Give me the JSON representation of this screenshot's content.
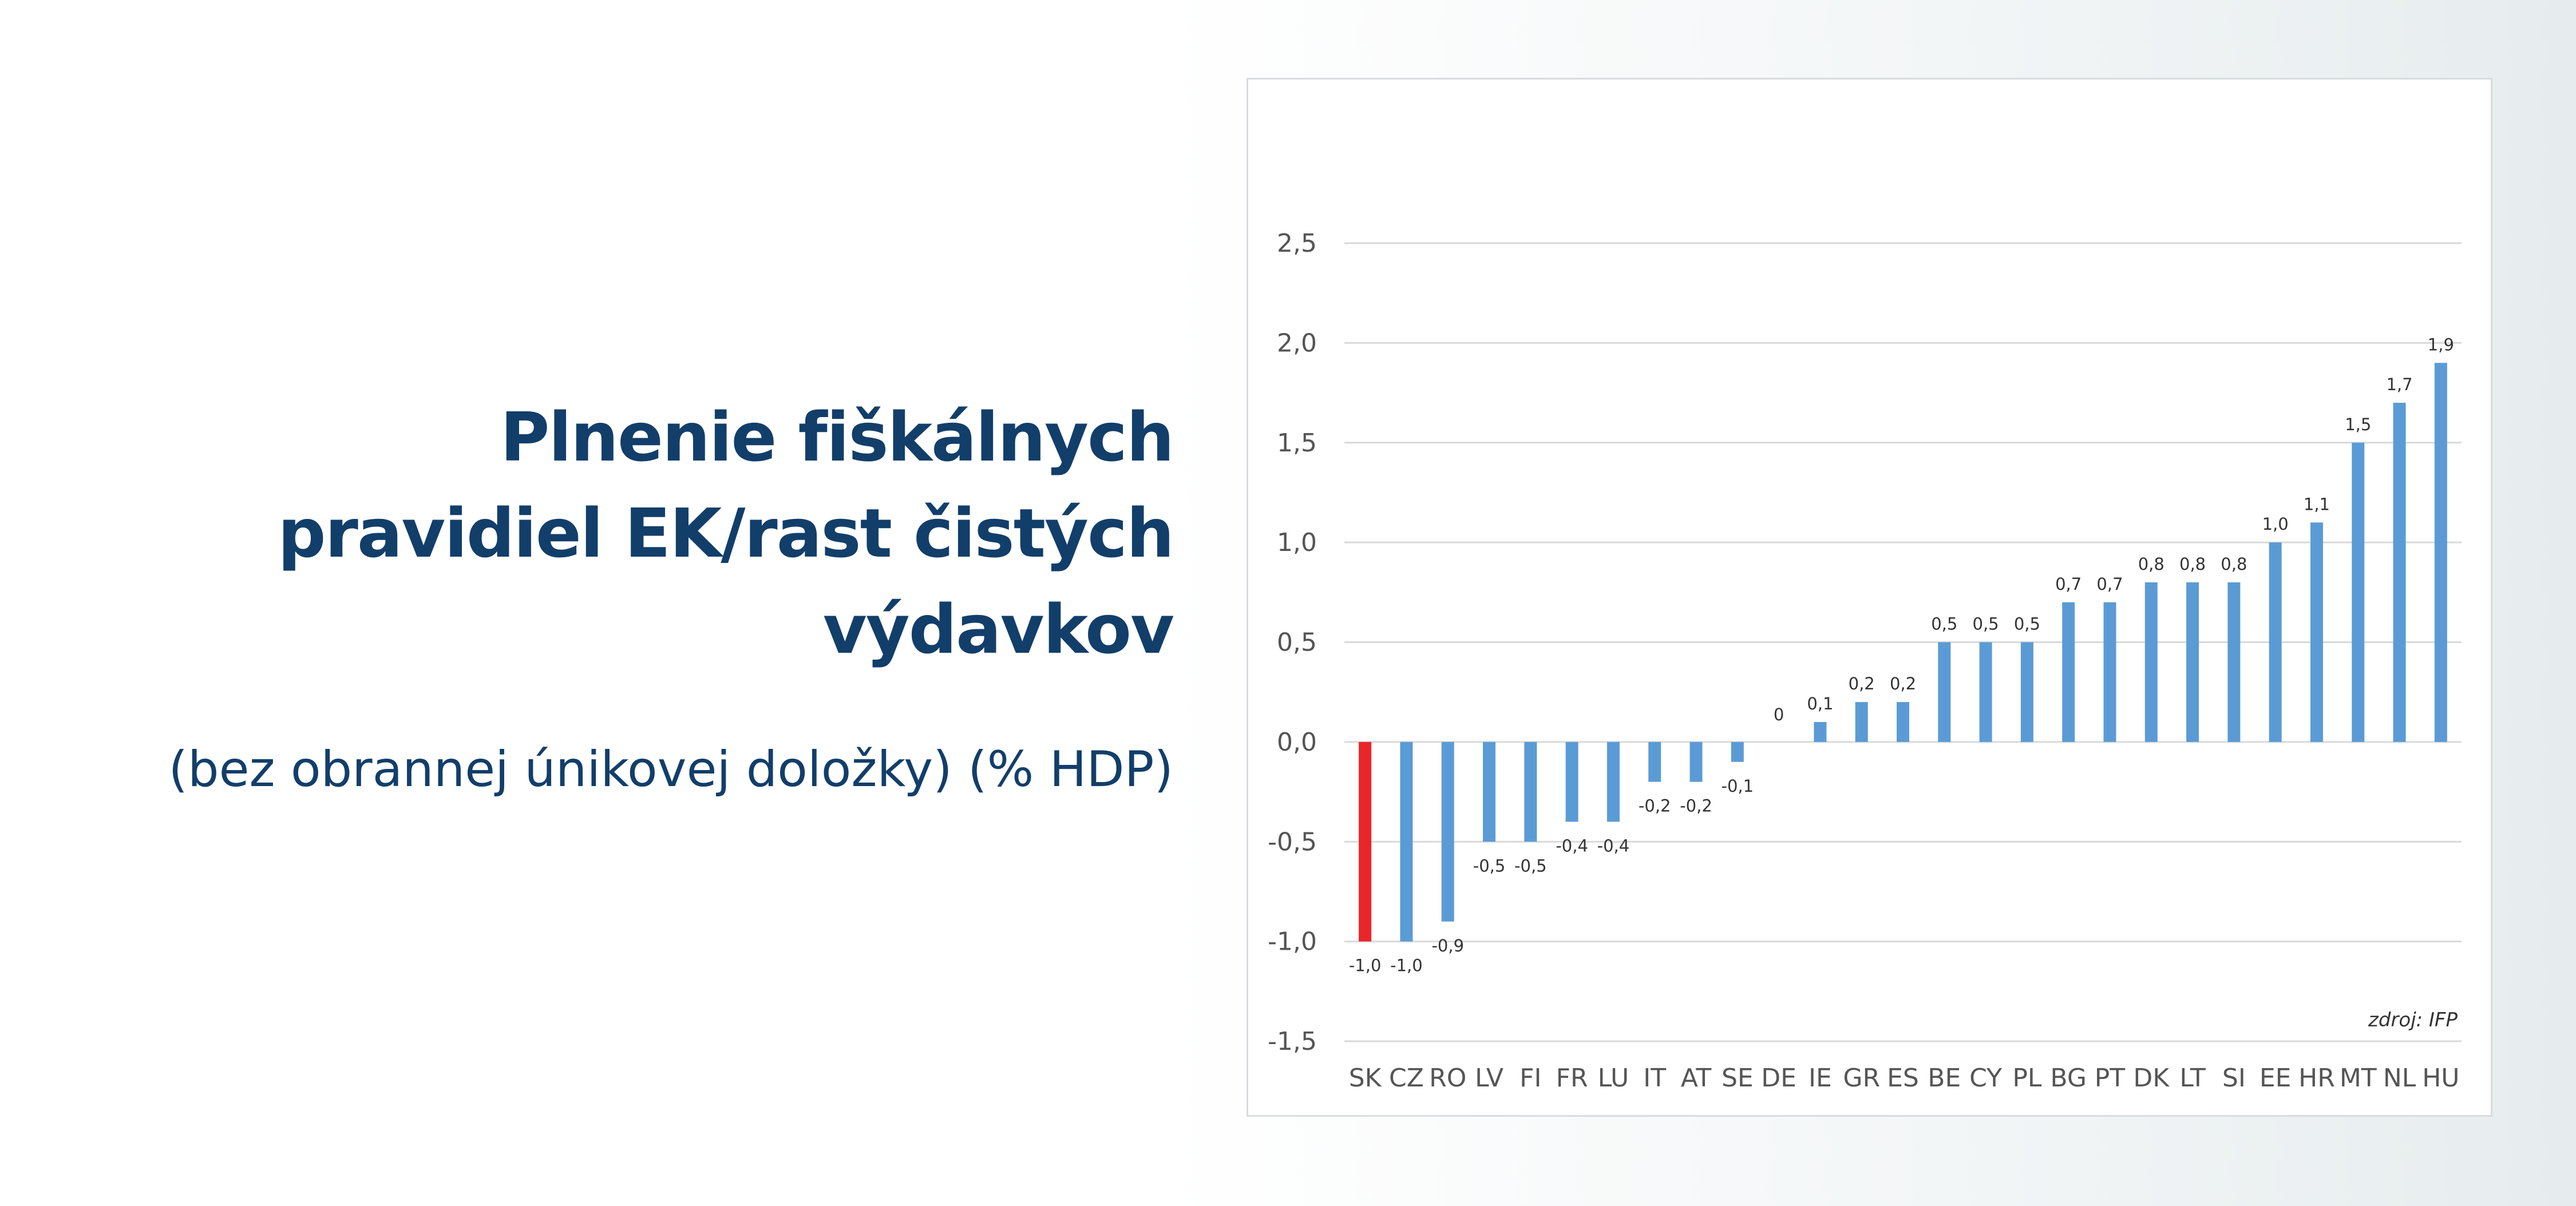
{
  "headline": {
    "line1": "Plnenie fiškálnych",
    "line2": "pravidiel EK/rast čistých",
    "line3": "výdavkov"
  },
  "subtitle": "(bez obrannej únikovej doložky) (% HDP)",
  "colors": {
    "title": "#123e6a",
    "bar": "#5b9bd5",
    "highlight_bar": "#e8262a",
    "gridline": "#d9d9d9"
  },
  "chart_data": {
    "type": "bar",
    "categories": [
      "SK",
      "CZ",
      "RO",
      "LV",
      "FI",
      "FR",
      "LU",
      "IT",
      "AT",
      "SE",
      "DE",
      "IE",
      "GR",
      "ES",
      "BE",
      "CY",
      "PL",
      "BG",
      "PT",
      "DK",
      "LT",
      "SI",
      "EE",
      "HR",
      "MT",
      "NL",
      "HU"
    ],
    "values": [
      -1.0,
      -1.0,
      -0.9,
      -0.5,
      -0.5,
      -0.4,
      -0.4,
      -0.2,
      -0.2,
      -0.1,
      0,
      0.1,
      0.2,
      0.2,
      0.5,
      0.5,
      0.5,
      0.7,
      0.7,
      0.8,
      0.8,
      0.8,
      1.0,
      1.1,
      1.5,
      1.7,
      1.9
    ],
    "data_labels": [
      "-1,0",
      "-1,0",
      "-0,9",
      "-0,5",
      "-0,5",
      "-0,4",
      "-0,4",
      "-0,2",
      "-0,2",
      "-0,1",
      "0",
      "0,1",
      "0,2",
      "0,2",
      "0,5",
      "0,5",
      "0,5",
      "0,7",
      "0,7",
      "0,8",
      "0,8",
      "0,8",
      "1,0",
      "1,1",
      "1,5",
      "1,7",
      "1,9"
    ],
    "highlight_category": "SK",
    "ylim": [
      -1.5,
      2.5
    ],
    "yticks": [
      2.5,
      2.0,
      1.5,
      1.0,
      0.5,
      0.0,
      -0.5,
      -1.0,
      -1.5
    ],
    "ytick_labels": [
      "2,5",
      "2,0",
      "1,5",
      "1,0",
      "0,5",
      "0,0",
      "-0,5",
      "-1,0",
      "-1,5"
    ],
    "grid": true,
    "legend": "none",
    "source_note": "zdroj: IFP"
  }
}
